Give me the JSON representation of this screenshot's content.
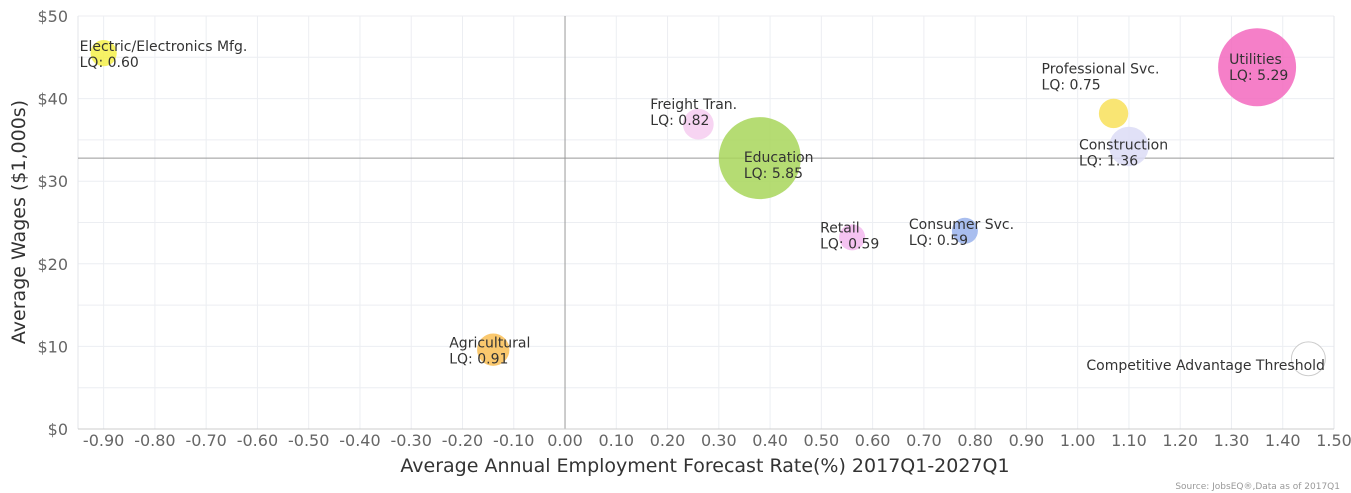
{
  "chart_data": {
    "type": "bubble",
    "xlabel": "Average Annual Employment Forecast Rate(%) 2017Q1-2027Q1",
    "ylabel": "Average Wages ($1,000s)",
    "xlim": [
      -0.95,
      1.5
    ],
    "ylim": [
      0,
      50
    ],
    "x_ticks": [
      -0.9,
      -0.8,
      -0.7,
      -0.6,
      -0.5,
      -0.4,
      -0.3,
      -0.2,
      -0.1,
      0.0,
      0.1,
      0.2,
      0.3,
      0.4,
      0.5,
      0.6,
      0.7,
      0.8,
      0.9,
      1.0,
      1.1,
      1.2,
      1.3,
      1.4,
      1.5
    ],
    "x_tick_labels": [
      "-0.90",
      "-0.80",
      "-0.70",
      "-0.60",
      "-0.50",
      "-0.40",
      "-0.30",
      "-0.20",
      "-0.10",
      "0.00",
      "0.10",
      "0.20",
      "0.30",
      "0.40",
      "0.50",
      "0.60",
      "0.70",
      "0.80",
      "0.90",
      "1.00",
      "1.10",
      "1.20",
      "1.30",
      "1.40",
      "1.50"
    ],
    "y_ticks": [
      0,
      10,
      20,
      30,
      40,
      50
    ],
    "y_tick_labels": [
      "$0",
      "$10",
      "$20",
      "$30",
      "$40",
      "$50"
    ],
    "grid": true,
    "reference_lines": {
      "x": 0.0,
      "y": 32.8
    },
    "points": [
      {
        "name": "Electric/Electronics Mfg.",
        "lq_label": "LQ: 0.60",
        "x": -0.9,
        "y": 45.5,
        "lq": 0.6,
        "color": "#f4f04a"
      },
      {
        "name": "Agricultural",
        "lq_label": "LQ: 0.91",
        "x": -0.14,
        "y": 9.6,
        "lq": 0.91,
        "color": "#f9be55"
      },
      {
        "name": "Freight Tran.",
        "lq_label": "LQ: 0.82",
        "x": 0.26,
        "y": 36.9,
        "lq": 0.82,
        "color": "#f6cdf0"
      },
      {
        "name": "Education",
        "lq_label": "LQ: 5.85",
        "x": 0.38,
        "y": 32.8,
        "lq": 5.85,
        "color": "#a8d65a"
      },
      {
        "name": "Retail",
        "lq_label": "LQ: 0.59",
        "x": 0.56,
        "y": 23.2,
        "lq": 0.59,
        "color": "#f3b8ee"
      },
      {
        "name": "Consumer Svc.",
        "lq_label": "LQ: 0.59",
        "x": 0.78,
        "y": 24.0,
        "lq": 0.59,
        "color": "#9ab3ec"
      },
      {
        "name": "Professional Svc.",
        "lq_label": "LQ: 0.75",
        "x": 1.07,
        "y": 38.2,
        "lq": 0.75,
        "color": "#f8e15a"
      },
      {
        "name": "Construction",
        "lq_label": "LQ: 1.36",
        "x": 1.1,
        "y": 34.2,
        "lq": 1.36,
        "color": "#dcdcf6"
      },
      {
        "name": "Utilities",
        "lq_label": "LQ: 5.29",
        "x": 1.35,
        "y": 43.8,
        "lq": 5.29,
        "color": "#f368be"
      },
      {
        "name": "Competitive Advantage Threshold",
        "lq_label": "",
        "x": 1.45,
        "y": 8.5,
        "lq": 1.0,
        "color": "#ffffff",
        "stroke": "#cccccc"
      }
    ],
    "source": "Source: JobsEQ®,Data as of 2017Q1"
  }
}
